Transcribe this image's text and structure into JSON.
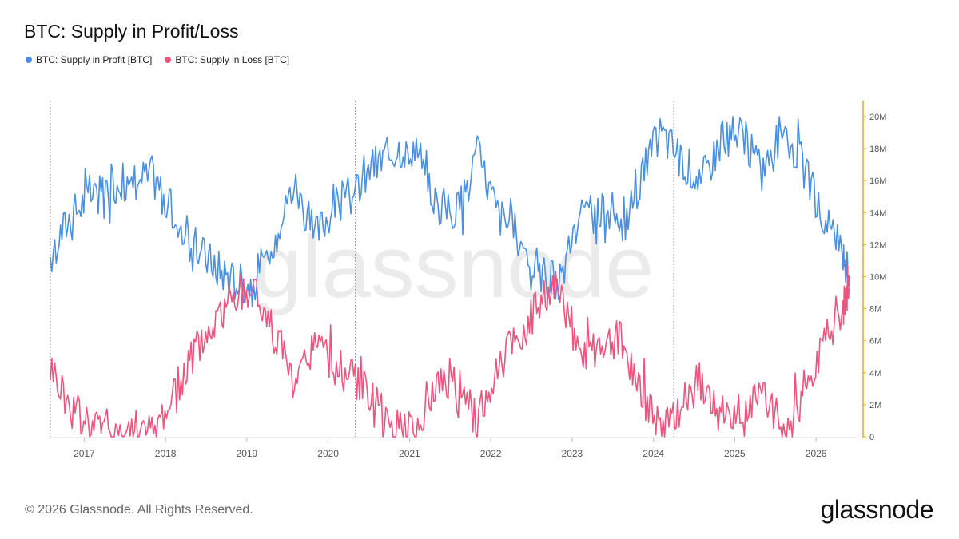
{
  "chart_data": {
    "type": "line",
    "title": "BTC: Supply in Profit/Loss",
    "xlabel": "",
    "ylabel": "",
    "x": [
      "2016-08",
      "2016-11",
      "2017-02",
      "2017-05",
      "2017-08",
      "2017-11",
      "2018-02",
      "2018-05",
      "2018-08",
      "2018-11",
      "2019-02",
      "2019-05",
      "2019-08",
      "2019-11",
      "2020-02",
      "2020-05",
      "2020-08",
      "2020-11",
      "2021-02",
      "2021-05",
      "2021-08",
      "2021-11",
      "2022-02",
      "2022-05",
      "2022-08",
      "2022-11",
      "2023-02",
      "2023-05",
      "2023-08",
      "2023-11",
      "2024-02",
      "2024-05",
      "2024-08",
      "2024-11",
      "2025-02",
      "2025-05",
      "2025-08",
      "2025-11",
      "2026-02",
      "2026-05",
      "2026-06"
    ],
    "series": [
      {
        "name": "BTC: Supply in Profit [BTC]",
        "color": "#4a90e2",
        "values": [
          11.5,
          13.8,
          15.2,
          15.8,
          16.0,
          16.4,
          14.0,
          12.0,
          10.8,
          9.8,
          9.5,
          12.5,
          15.8,
          12.5,
          14.5,
          15.2,
          17.0,
          18.0,
          18.2,
          14.5,
          14.0,
          17.8,
          14.0,
          12.5,
          10.5,
          9.5,
          13.5,
          14.0,
          12.5,
          16.0,
          19.0,
          17.5,
          16.0,
          18.5,
          19.0,
          16.5,
          19.5,
          17.0,
          13.5,
          11.5,
          10.0
        ]
      },
      {
        "name": "BTC: Supply in Loss [BTC]",
        "color": "#f0537d",
        "values": [
          4.5,
          1.8,
          0.8,
          0.5,
          0.5,
          0.3,
          2.5,
          5.0,
          7.2,
          8.5,
          9.5,
          6.5,
          3.0,
          6.0,
          4.5,
          3.5,
          2.0,
          0.5,
          0.3,
          3.5,
          3.8,
          0.8,
          4.5,
          6.0,
          8.2,
          9.5,
          5.5,
          5.0,
          6.5,
          3.0,
          0.5,
          2.0,
          3.5,
          1.0,
          0.5,
          3.0,
          0.5,
          2.5,
          6.0,
          8.0,
          10.0
        ]
      }
    ],
    "yticks": [
      "0",
      "2M",
      "4M",
      "6M",
      "8M",
      "10M",
      "12M",
      "14M",
      "16M",
      "18M",
      "20M"
    ],
    "ylim": [
      0,
      20
    ],
    "xticks": [
      "2017",
      "2018",
      "2019",
      "2020",
      "2021",
      "2022",
      "2023",
      "2024",
      "2025",
      "2026"
    ],
    "xlim": [
      "2016-08",
      "2026-07"
    ],
    "halving_lines": [
      "2016-07",
      "2020-05",
      "2024-04"
    ],
    "legend": "top-left",
    "grid": false,
    "watermark": "glassnode"
  },
  "footer": {
    "copyright": "© 2026 Glassnode. All Rights Reserved.",
    "brand": "glassnode"
  }
}
